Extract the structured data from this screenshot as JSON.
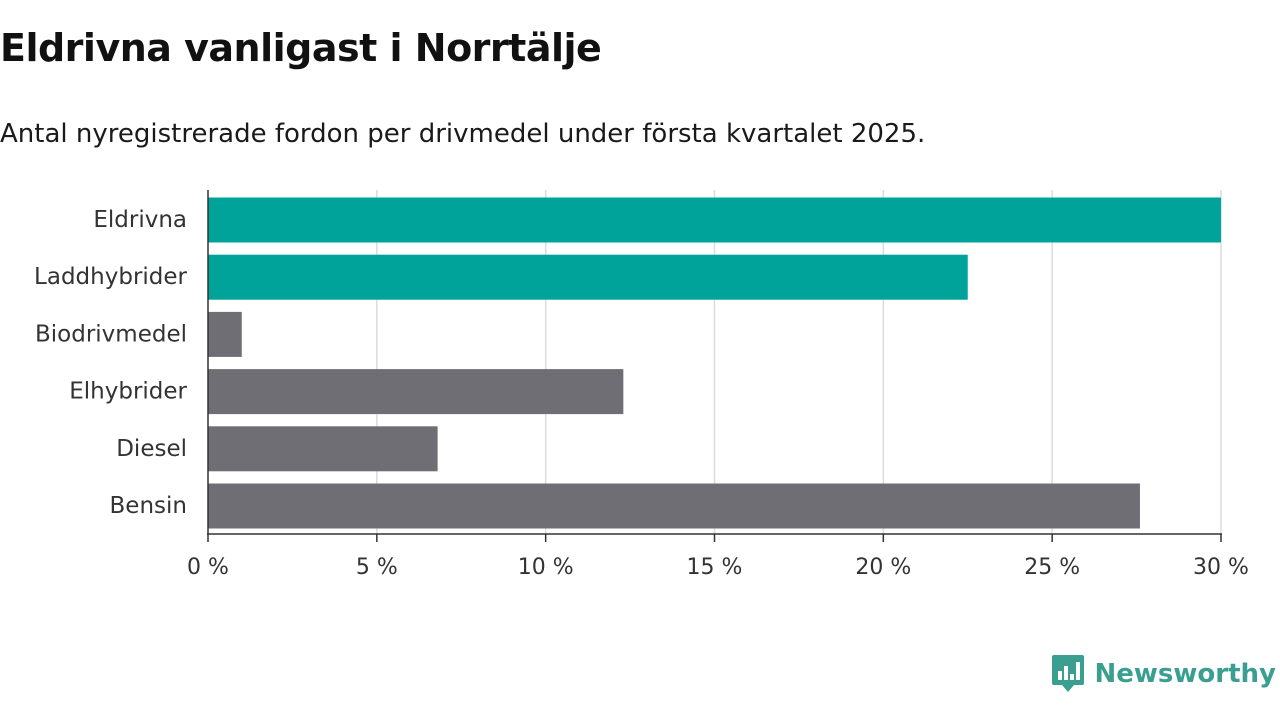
{
  "title": "Eldrivna vanligast i Norrtälje",
  "subtitle": "Antal nyregistrerade fordon per drivmedel under första kvartalet 2025.",
  "logo": {
    "text": "Newsworthy",
    "icon": "newsworthy-logo-icon"
  },
  "colors": {
    "highlight": "#00a39a",
    "default": "#6f6e75",
    "grid": "#dcdcdc",
    "axis": "#333333",
    "logo": "#3a9f91"
  },
  "chart_data": {
    "type": "bar",
    "orientation": "horizontal",
    "categories": [
      "Eldrivna",
      "Laddhybrider",
      "Biodrivmedel",
      "Elhybrider",
      "Diesel",
      "Bensin"
    ],
    "values": [
      30.0,
      22.5,
      1.0,
      12.3,
      6.8,
      27.6
    ],
    "highlight": [
      true,
      true,
      false,
      false,
      false,
      false
    ],
    "xlim": [
      0,
      30
    ],
    "ticks": [
      0,
      5,
      10,
      15,
      20,
      25,
      30
    ],
    "tick_labels": [
      "0 %",
      "5 %",
      "10 %",
      "15 %",
      "20 %",
      "25 %",
      "30 %"
    ],
    "grid": true
  }
}
